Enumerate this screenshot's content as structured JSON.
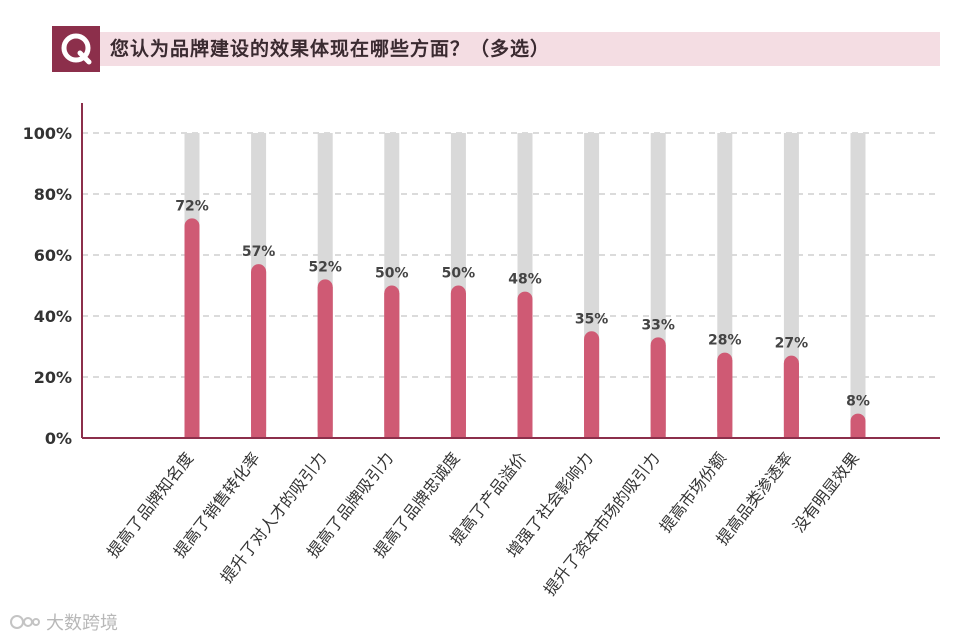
{
  "header": {
    "badge_letter": "Q",
    "question": "您认为品牌建设的效果体现在哪些方面？（多选）"
  },
  "watermark": {
    "text": "大数跨境"
  },
  "colors": {
    "bar": "#cf5a74",
    "track": "#d9d9d9",
    "axis": "#8c2f4b",
    "grid": "#9a9a9a",
    "header_band": "#f4dde3",
    "badge": "#8c2f4b"
  },
  "chart_data": {
    "type": "bar",
    "categories": [
      "提高了品牌知名度",
      "提高了销售转化率",
      "提升了对人才的吸引力",
      "提高了品牌吸引力",
      "提高了品牌忠诚度",
      "提高了产品溢价",
      "增强了社会影响力",
      "提升了资本市场的吸引力",
      "提高市场份额",
      "提高品类渗透率",
      "没有明显效果"
    ],
    "values": [
      72,
      57,
      52,
      50,
      50,
      48,
      35,
      33,
      28,
      27,
      8
    ],
    "value_labels": [
      "72%",
      "57%",
      "52%",
      "50%",
      "50%",
      "48%",
      "35%",
      "33%",
      "28%",
      "27%",
      "8%"
    ],
    "ylim": [
      0,
      100
    ],
    "yticks": [
      "0%",
      "20%",
      "40%",
      "60%",
      "80%",
      "100%"
    ],
    "ytick_values": [
      0,
      20,
      40,
      60,
      80,
      100
    ],
    "grid": true,
    "background_track": 100
  }
}
